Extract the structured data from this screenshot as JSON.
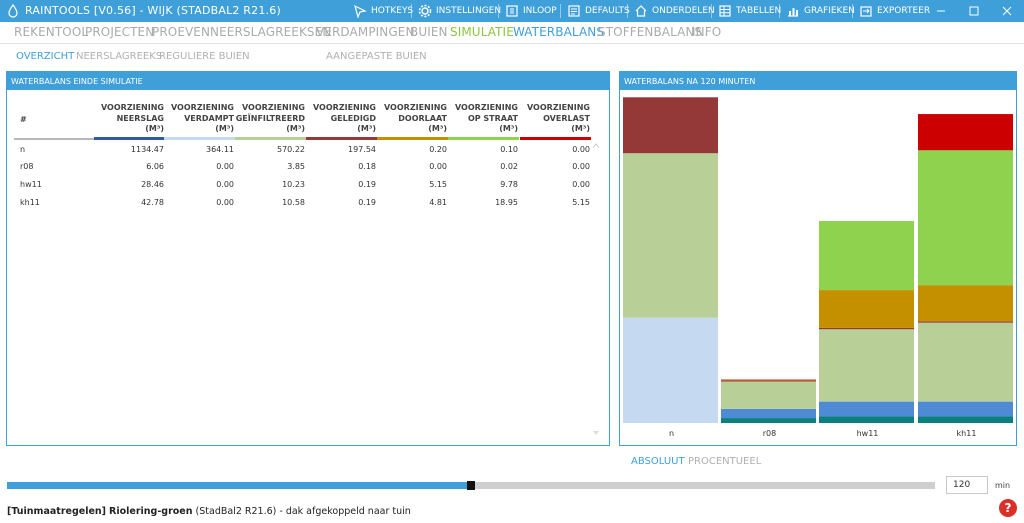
{
  "window": {
    "title": "RAINTOOLS [V0.56] - WIJK (STADBAL2 R21.6)",
    "toolbar": [
      {
        "label": "HOTKEYS",
        "icon": "hotkeys-icon"
      },
      {
        "label": "INSTELLINGEN",
        "icon": "gear-icon"
      },
      {
        "label": "INLOOP",
        "icon": "inloop-icon"
      },
      {
        "label": "DEFAULTS",
        "icon": "defaults-icon"
      },
      {
        "label": "ONDERDELEN",
        "icon": "home-icon"
      },
      {
        "label": "TABELLEN",
        "icon": "table-icon"
      },
      {
        "label": "GRAFIEKEN",
        "icon": "chart-icon"
      },
      {
        "label": "EXPORTEER",
        "icon": "export-icon"
      }
    ]
  },
  "nav": {
    "items": [
      "REKENTOOL",
      "PROJECTEN",
      "PROEVEN",
      "NEERSLAGREEKSEN",
      "VERDAMPINGEN",
      "BUIEN",
      "SIMULATIE",
      "WATERBALANS",
      "STOFFENBALANS",
      "INFO"
    ],
    "active": "WATERBALANS"
  },
  "subnav": {
    "items": [
      "OVERZICHT",
      "NEERSLAGREEKS",
      "REGULIERE BUIEN",
      "AANGEPASTE BUIEN"
    ],
    "active": "OVERZICHT"
  },
  "left_panel": {
    "title": "WATERBALANS EINDE SIMULATIE",
    "hash_header": "#",
    "columns": [
      {
        "l1": "VOORZIENING",
        "l2": "NEERSLAG",
        "l3": "(M³)",
        "color": "#2e5d9f"
      },
      {
        "l1": "VOORZIENING",
        "l2": "VERDAMPT",
        "l3": "(M³)",
        "color": "#c5d9f0"
      },
      {
        "l1": "VOORZIENING",
        "l2": "GEÏNFILTREERD",
        "l3": "(M³)",
        "color": "#b9cf98"
      },
      {
        "l1": "VOORZIENING",
        "l2": "GELEDIGD",
        "l3": "(M³)",
        "color": "#943838"
      },
      {
        "l1": "VOORZIENING",
        "l2": "DOORLAAT",
        "l3": "(M³)",
        "color": "#c49000"
      },
      {
        "l1": "VOORZIENING",
        "l2": "OP STRAAT",
        "l3": "(M³)",
        "color": "#8fd24e"
      },
      {
        "l1": "VOORZIENING",
        "l2": "OVERLAST",
        "l3": "(M³)",
        "color": "#cc0000"
      }
    ],
    "rows": [
      {
        "name": "n",
        "values": [
          "1134.47",
          "364.11",
          "570.22",
          "197.54",
          "0.20",
          "0.10",
          "0.00"
        ]
      },
      {
        "name": "r08",
        "values": [
          "6.06",
          "0.00",
          "3.85",
          "0.18",
          "0.00",
          "0.02",
          "0.00"
        ]
      },
      {
        "name": "hw11",
        "values": [
          "28.46",
          "0.00",
          "10.23",
          "0.19",
          "5.15",
          "9.78",
          "0.00"
        ]
      },
      {
        "name": "kh11",
        "values": [
          "42.78",
          "0.00",
          "10.58",
          "0.19",
          "4.81",
          "18.95",
          "5.15"
        ]
      }
    ]
  },
  "right_panel": {
    "title": "WATERBALANS NA 120 MINUTEN"
  },
  "chart_data": {
    "type": "bar",
    "stacked": true,
    "normalized_per_category": true,
    "categories": [
      "n",
      "r08",
      "hw11",
      "kh11"
    ],
    "series": [
      {
        "key": "teal",
        "color": "#0c7f7f",
        "values": [
          0,
          0.015,
          0.02,
          0.02
        ]
      },
      {
        "key": "blue",
        "color": "#4f8ad4",
        "values": [
          0,
          0.028,
          0.045,
          0.045
        ]
      },
      {
        "key": "lightblue",
        "color": "#c5d9f0",
        "values": [
          0.32,
          0,
          0,
          0
        ]
      },
      {
        "key": "sage",
        "color": "#b9cf98",
        "values": [
          0.5,
          0.082,
          0.22,
          0.24
        ]
      },
      {
        "key": "darkred",
        "color": "#943838",
        "values": [
          0.17,
          0.002,
          0.004,
          0.004
        ]
      },
      {
        "key": "ochre",
        "color": "#c49000",
        "values": [
          0,
          0,
          0.115,
          0.11
        ]
      },
      {
        "key": "green",
        "color": "#8fd24e",
        "values": [
          0,
          0.002,
          0.21,
          0.41
        ]
      },
      {
        "key": "red",
        "color": "#cc0000",
        "values": [
          0,
          0.003,
          0,
          0.11
        ]
      }
    ],
    "ylim": [
      0,
      1
    ],
    "grid": false,
    "legend": "none"
  },
  "bottom": {
    "modes": [
      "ABSOLUUT",
      "PROCENTUEEL"
    ],
    "active_mode": "ABSOLUUT",
    "time_value": "120",
    "time_unit": "min",
    "slider_progress": 0.502,
    "help": "?"
  },
  "status": {
    "prefix": "[Tuinmaatregelen]",
    "name": "Riolering-groen",
    "suffix": "(StadBal2 R21.6) - dak afgekoppeld naar tuin"
  }
}
